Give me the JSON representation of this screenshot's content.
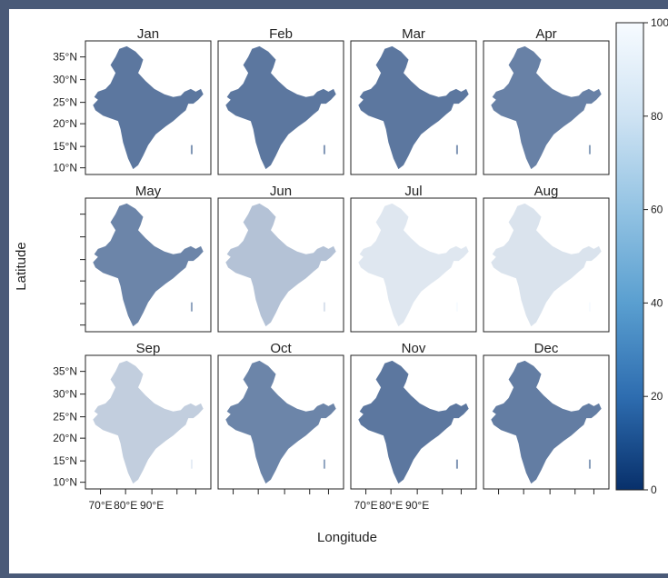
{
  "chart_data": {
    "type": "heatmap",
    "xlabel": "Longitude",
    "ylabel": "Latitude",
    "x_ticks": [
      "70°E",
      "80°E",
      "90°E"
    ],
    "y_ticks": [
      "35°N",
      "30°N",
      "25°N",
      "20°N",
      "15°N",
      "10°N"
    ],
    "colorbar": {
      "ticks": [
        "0",
        "20",
        "40",
        "60",
        "80",
        "100"
      ],
      "range": [
        0,
        100
      ],
      "low_color": "#08306b",
      "high_color": "#f7fbff"
    },
    "panels": [
      {
        "month": "Jan",
        "value": 35
      },
      {
        "month": "Feb",
        "value": 35
      },
      {
        "month": "Mar",
        "value": 35
      },
      {
        "month": "Apr",
        "value": 40
      },
      {
        "month": "May",
        "value": 42
      },
      {
        "month": "Jun",
        "value": 72
      },
      {
        "month": "Jul",
        "value": 90
      },
      {
        "month": "Aug",
        "value": 88
      },
      {
        "month": "Sep",
        "value": 78
      },
      {
        "month": "Oct",
        "value": 42
      },
      {
        "month": "Nov",
        "value": 35
      },
      {
        "month": "Dec",
        "value": 38
      }
    ]
  }
}
